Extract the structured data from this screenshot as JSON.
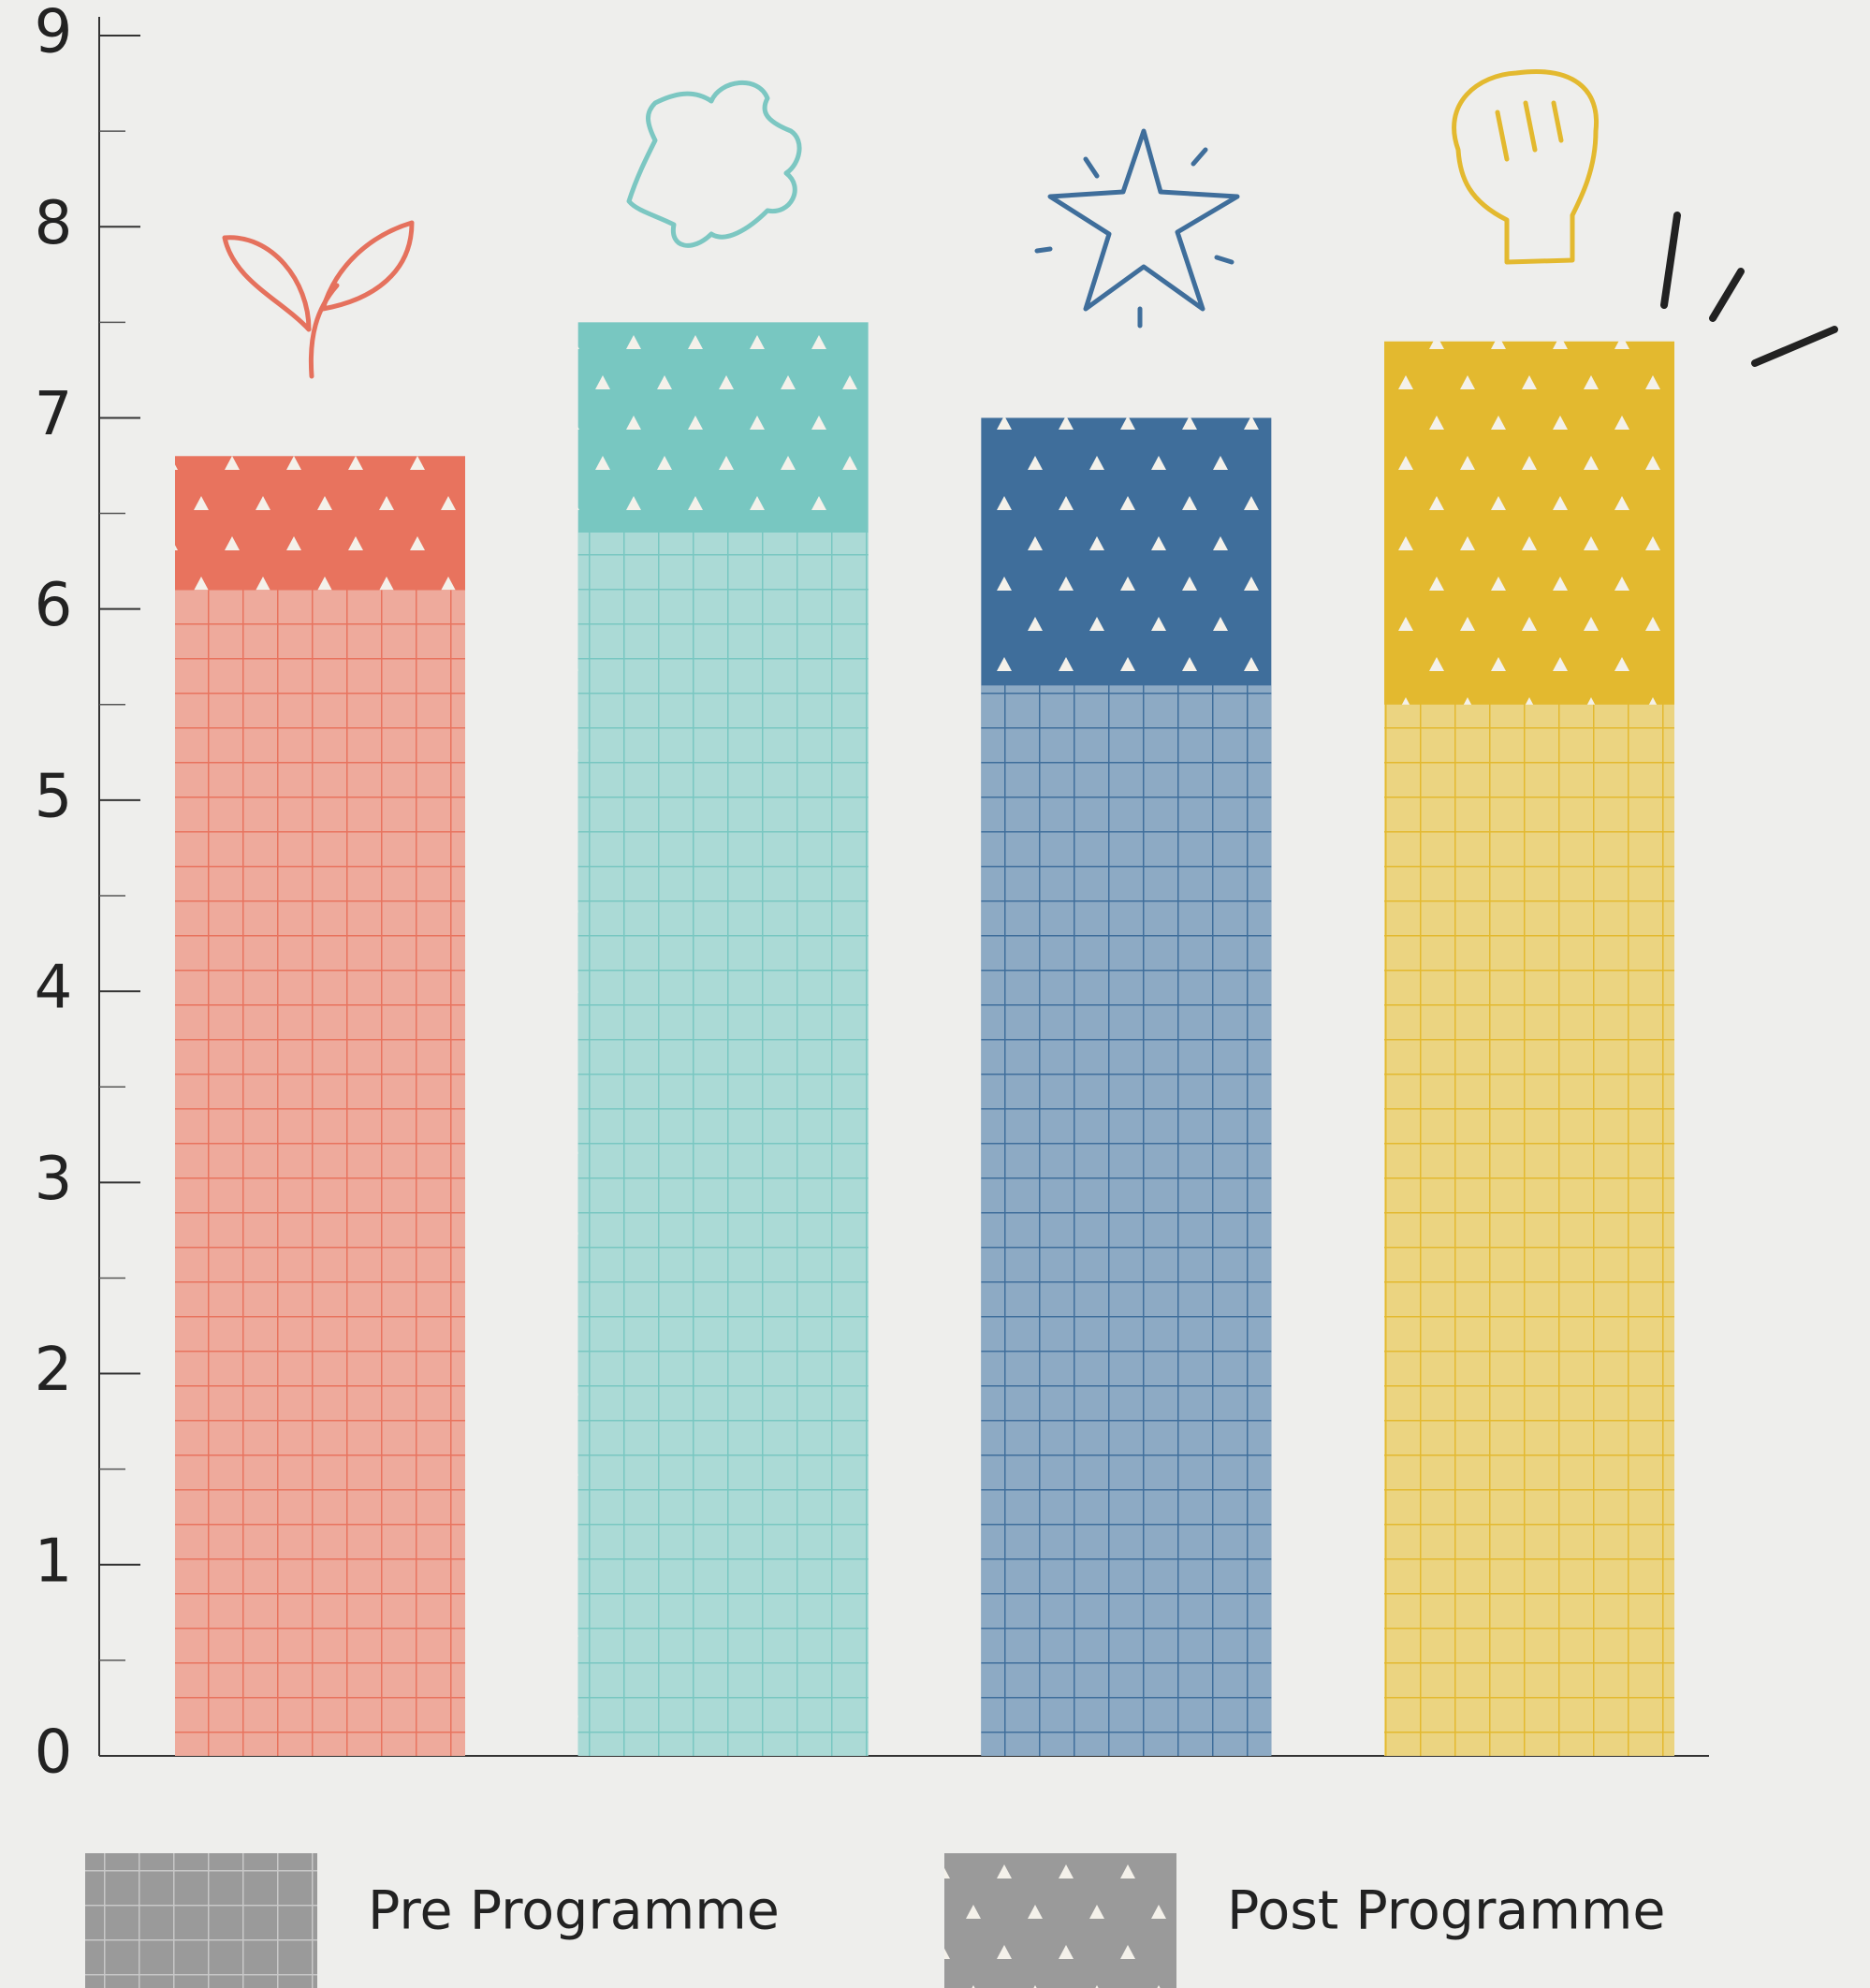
{
  "chart_data": {
    "type": "bar",
    "categories": [
      null,
      null,
      null,
      null
    ],
    "series": [
      {
        "name": "Post Programme",
        "colors": [
          "#e8735e",
          "#78c7c1",
          "#3f6e9b",
          "#e3b92f"
        ],
        "values": [
          6.8,
          7.5,
          7.0,
          7.4
        ]
      },
      {
        "name": "Pre Programme",
        "colors": [
          "#eeaa9c",
          "#abdad6",
          "#8daac4",
          "#ebd481"
        ],
        "values": [
          6.1,
          6.4,
          5.6,
          5.5
        ]
      }
    ],
    "ylim": [
      0,
      9
    ],
    "yticks": [
      0,
      1,
      2,
      3,
      4,
      5,
      6,
      7,
      8,
      9
    ],
    "yminorticks": [
      0.5,
      1.5,
      2.5,
      3.5,
      4.5,
      5.5,
      6.5,
      7.5,
      8.5
    ],
    "legend_color": "#9a9a9a"
  }
}
